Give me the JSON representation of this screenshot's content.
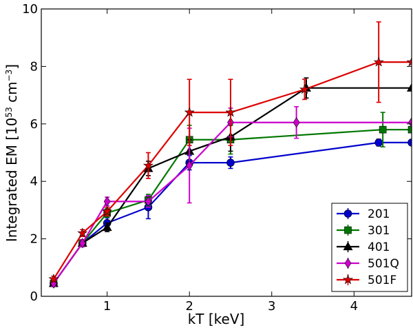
{
  "chart_data": {
    "type": "line",
    "title": "",
    "xlabel": "kT [keV]",
    "ylabel_prefix": "Integrated EM [10",
    "ylabel_exp": "53",
    "ylabel_mid": " cm",
    "ylabel_exp2": "−3",
    "ylabel_suffix": "]",
    "xlim": [
      0.2,
      4.7
    ],
    "ylim": [
      0,
      10
    ],
    "xticks": [
      1,
      2,
      3,
      4
    ],
    "xtick_labels": [
      "1",
      "2",
      "3",
      "4"
    ],
    "yticks": [
      0,
      2,
      4,
      6,
      8,
      10
    ],
    "ytick_labels": [
      "0",
      "2",
      "4",
      "6",
      "8",
      "10"
    ],
    "legend_position": "lower-right",
    "series": [
      {
        "name": "201",
        "color": "#0000cc",
        "marker": "circle",
        "x": [
          0.35,
          0.7,
          1.0,
          1.5,
          2.0,
          2.5,
          4.3,
          4.7
        ],
        "y": [
          0.45,
          1.85,
          2.55,
          3.1,
          4.65,
          4.65,
          5.35,
          5.35
        ],
        "yerr": [
          0.1,
          0.12,
          0.18,
          0.4,
          0.25,
          0.2,
          0.12,
          0
        ]
      },
      {
        "name": "301",
        "color": "#007700",
        "marker": "square",
        "x": [
          0.35,
          0.7,
          1.0,
          1.5,
          2.0,
          2.5,
          4.35,
          4.7
        ],
        "y": [
          0.45,
          1.85,
          2.9,
          3.35,
          5.45,
          5.45,
          5.8,
          5.8
        ],
        "yerr": [
          0.1,
          0.12,
          0.15,
          0.2,
          0.5,
          0.5,
          0.6,
          0
        ]
      },
      {
        "name": "401",
        "color": "#000000",
        "marker": "triangle",
        "x": [
          0.35,
          0.7,
          1.0,
          1.5,
          2.0,
          2.5,
          3.42,
          4.7
        ],
        "y": [
          0.45,
          1.85,
          2.4,
          4.45,
          5.05,
          5.55,
          7.25,
          7.25
        ],
        "yerr": [
          0.1,
          0.12,
          0.15,
          0.25,
          0.4,
          0.5,
          0.35,
          0
        ]
      },
      {
        "name": "501Q",
        "color": "#cc00cc",
        "marker": "diamond",
        "x": [
          0.35,
          0.7,
          1.0,
          1.5,
          2.0,
          2.5,
          3.3,
          4.7
        ],
        "y": [
          0.45,
          1.85,
          3.3,
          3.3,
          4.55,
          6.05,
          6.05,
          6.05
        ],
        "yerr": [
          0.1,
          0.12,
          0.15,
          0.2,
          1.3,
          0.5,
          0.55,
          0
        ]
      },
      {
        "name": "501F",
        "color": "#dd0000",
        "marker": "star",
        "x": [
          0.35,
          0.7,
          1.0,
          1.5,
          2.0,
          2.5,
          3.4,
          4.3,
          4.7
        ],
        "y": [
          0.6,
          2.2,
          2.95,
          4.55,
          6.4,
          6.4,
          7.2,
          8.15,
          8.15
        ],
        "yerr": [
          0.1,
          0.12,
          0.15,
          0.45,
          1.15,
          1.15,
          0.35,
          1.4,
          0
        ]
      }
    ]
  }
}
